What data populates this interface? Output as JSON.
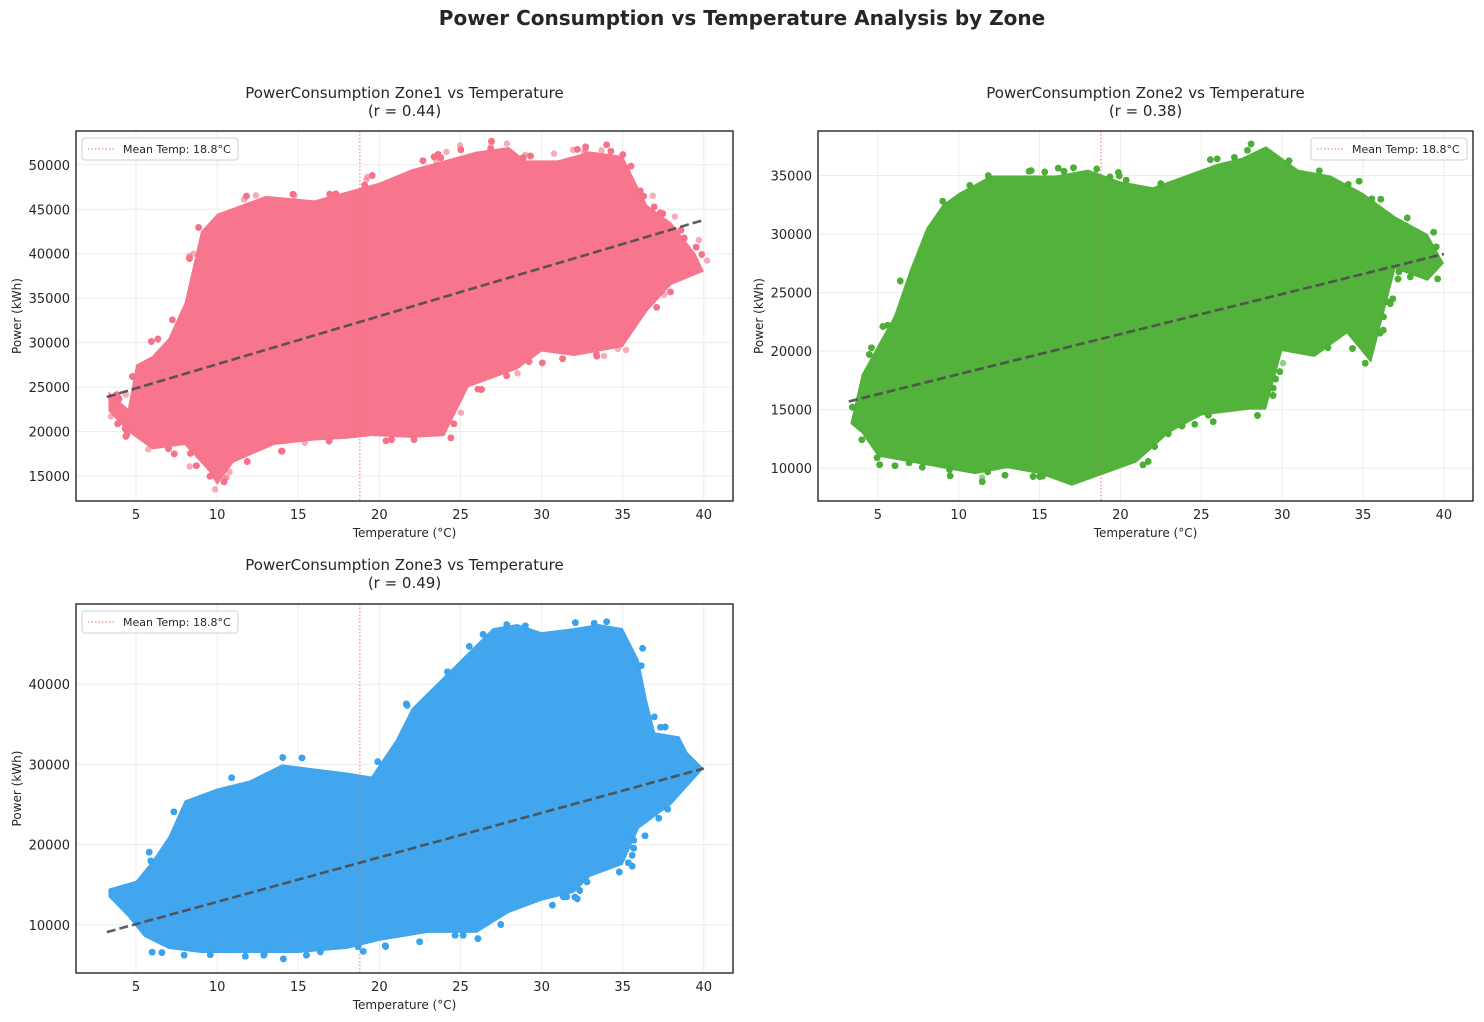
{
  "figure": {
    "title": "Power Consumption vs Temperature Analysis by Zone"
  },
  "chart_data": [
    {
      "type": "scatter",
      "title": "PowerConsumption Zone1 vs Temperature",
      "subtitle": "(r = 0.44)",
      "xlabel": "Temperature (°C)",
      "ylabel": "Power (kWh)",
      "xlim": [
        1.3,
        41.8
      ],
      "ylim": [
        12200,
        53800
      ],
      "xticks": [
        5,
        10,
        15,
        20,
        25,
        30,
        35,
        40
      ],
      "yticks": [
        15000,
        20000,
        25000,
        30000,
        35000,
        40000,
        45000,
        50000
      ],
      "color": "#f77189",
      "grid": true,
      "mean_temp": 18.8,
      "legend": {
        "label": "Mean Temp: 18.8°C",
        "position": "upper left"
      },
      "trend_line": {
        "x": [
          3.2,
          40.0
        ],
        "y": [
          23900,
          43800
        ]
      },
      "point_cloud": [
        [
          3.3,
          24500
        ],
        [
          4.5,
          22600
        ],
        [
          5,
          27500
        ],
        [
          6,
          28500
        ],
        [
          7,
          30500
        ],
        [
          8,
          34500
        ],
        [
          9,
          42500
        ],
        [
          10,
          44500
        ],
        [
          13,
          46500
        ],
        [
          16,
          46000
        ],
        [
          18,
          47000
        ],
        [
          20,
          48000
        ],
        [
          22,
          49500
        ],
        [
          24,
          50500
        ],
        [
          26,
          51500
        ],
        [
          28,
          52000
        ],
        [
          29,
          50500
        ],
        [
          31,
          50500
        ],
        [
          33,
          51500
        ],
        [
          35,
          51000
        ],
        [
          36.5,
          45500
        ],
        [
          38,
          43500
        ],
        [
          39.5,
          40000
        ],
        [
          40,
          38000
        ],
        [
          38,
          36500
        ],
        [
          36.5,
          33500
        ],
        [
          35,
          29500
        ],
        [
          33.5,
          29000
        ],
        [
          32,
          28500
        ],
        [
          30,
          29000
        ],
        [
          28.5,
          27000
        ],
        [
          27,
          26000
        ],
        [
          25.5,
          25000
        ],
        [
          24,
          19500
        ],
        [
          22,
          19300
        ],
        [
          19.5,
          19500
        ],
        [
          18,
          19200
        ],
        [
          16,
          19000
        ],
        [
          13.5,
          18500
        ],
        [
          11,
          16500
        ],
        [
          10,
          14000
        ],
        [
          9.5,
          15500
        ],
        [
          8,
          18500
        ],
        [
          6,
          18000
        ],
        [
          4.5,
          20000
        ],
        [
          3.3,
          22300
        ]
      ]
    },
    {
      "type": "scatter",
      "title": "PowerConsumption Zone2 vs Temperature",
      "subtitle": "(r = 0.38)",
      "xlabel": "Temperature (°C)",
      "ylabel": "Power (kWh)",
      "xlim": [
        1.3,
        41.8
      ],
      "ylim": [
        7200,
        38800
      ],
      "xticks": [
        5,
        10,
        15,
        20,
        25,
        30,
        35,
        40
      ],
      "yticks": [
        10000,
        15000,
        20000,
        25000,
        30000,
        35000
      ],
      "color": "#4daf36",
      "grid": true,
      "mean_temp": 18.8,
      "legend": {
        "label": "Mean Temp: 18.8°C",
        "position": "upper right"
      },
      "trend_line": {
        "x": [
          3.2,
          40.0
        ],
        "y": [
          15700,
          28300
        ]
      },
      "point_cloud": [
        [
          3.3,
          13800
        ],
        [
          4,
          18000
        ],
        [
          5,
          20500
        ],
        [
          6,
          23000
        ],
        [
          7,
          27000
        ],
        [
          8,
          30500
        ],
        [
          9,
          32500
        ],
        [
          10,
          33500
        ],
        [
          12,
          35000
        ],
        [
          14,
          35000
        ],
        [
          16,
          35000
        ],
        [
          18,
          35500
        ],
        [
          20,
          34500
        ],
        [
          22,
          34000
        ],
        [
          24,
          35000
        ],
        [
          26,
          36000
        ],
        [
          27.5,
          36500
        ],
        [
          29,
          37500
        ],
        [
          31,
          35500
        ],
        [
          33,
          35000
        ],
        [
          35,
          33500
        ],
        [
          37,
          31500
        ],
        [
          39,
          30000
        ],
        [
          40,
          27500
        ],
        [
          39,
          26000
        ],
        [
          37,
          27000
        ],
        [
          35.5,
          19000
        ],
        [
          34,
          21500
        ],
        [
          32,
          19500
        ],
        [
          30,
          20000
        ],
        [
          29,
          15000
        ],
        [
          28,
          15000
        ],
        [
          25,
          14500
        ],
        [
          23,
          13000
        ],
        [
          21,
          10500
        ],
        [
          19,
          9500
        ],
        [
          17,
          8500
        ],
        [
          15,
          9500
        ],
        [
          13,
          10000
        ],
        [
          11,
          9500
        ],
        [
          9,
          10000
        ],
        [
          7,
          10500
        ],
        [
          5,
          11000
        ],
        [
          4,
          13000
        ]
      ]
    },
    {
      "type": "scatter",
      "title": "PowerConsumption Zone3 vs Temperature",
      "subtitle": "(r = 0.49)",
      "xlabel": "Temperature (°C)",
      "ylabel": "Power (kWh)",
      "xlim": [
        1.3,
        41.8
      ],
      "ylim": [
        4000,
        50000
      ],
      "xticks": [
        5,
        10,
        15,
        20,
        25,
        30,
        35,
        40
      ],
      "yticks": [
        10000,
        20000,
        30000,
        40000
      ],
      "color": "#3ba3ec",
      "grid": true,
      "mean_temp": 18.8,
      "legend": {
        "label": "Mean Temp: 18.8°C",
        "position": "upper left"
      },
      "trend_line": {
        "x": [
          3.2,
          40.0
        ],
        "y": [
          9100,
          29500
        ]
      },
      "point_cloud": [
        [
          3.3,
          14500
        ],
        [
          5,
          15500
        ],
        [
          6,
          18000
        ],
        [
          7,
          21000
        ],
        [
          8,
          25500
        ],
        [
          10,
          27000
        ],
        [
          12,
          28000
        ],
        [
          14,
          30000
        ],
        [
          16,
          29500
        ],
        [
          18,
          29000
        ],
        [
          19.5,
          28500
        ],
        [
          21,
          33000
        ],
        [
          22,
          37000
        ],
        [
          24,
          41000
        ],
        [
          26,
          45000
        ],
        [
          27,
          47000
        ],
        [
          28.5,
          47500
        ],
        [
          30,
          46500
        ],
        [
          32,
          47000
        ],
        [
          33.5,
          47500
        ],
        [
          35,
          47000
        ],
        [
          36,
          43000
        ],
        [
          36.5,
          38000
        ],
        [
          37,
          34000
        ],
        [
          38.5,
          33500
        ],
        [
          39,
          31500
        ],
        [
          40,
          29500
        ],
        [
          38,
          25000
        ],
        [
          36,
          22000
        ],
        [
          35,
          17500
        ],
        [
          33,
          16000
        ],
        [
          32,
          14000
        ],
        [
          30,
          13000
        ],
        [
          28,
          11500
        ],
        [
          26,
          9000
        ],
        [
          23,
          9000
        ],
        [
          20,
          8000
        ],
        [
          18,
          7000
        ],
        [
          15,
          6500
        ],
        [
          12,
          6500
        ],
        [
          9,
          6500
        ],
        [
          7,
          7000
        ],
        [
          5.5,
          8500
        ],
        [
          4.5,
          11000
        ],
        [
          3.3,
          13500
        ]
      ]
    }
  ]
}
